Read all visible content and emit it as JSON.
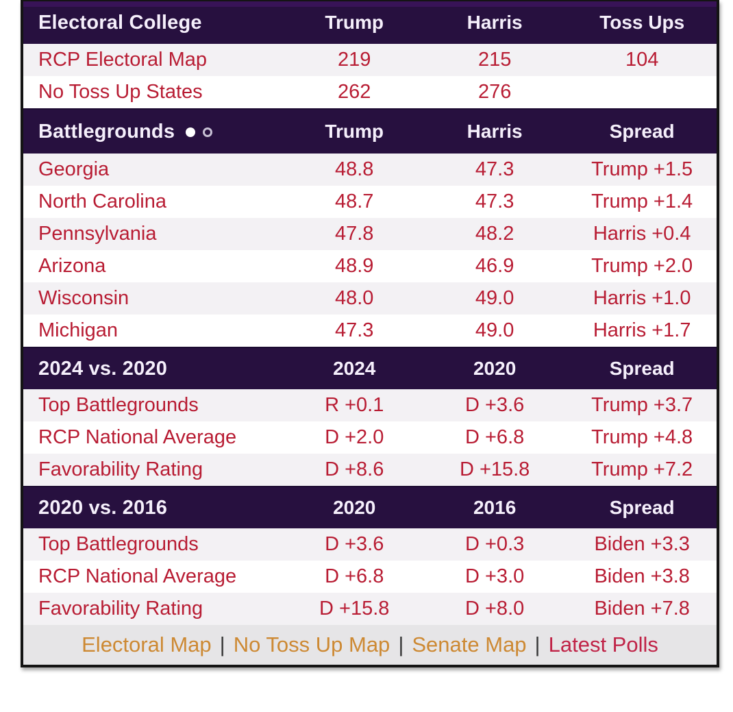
{
  "widget_name": "RCP Election Widget",
  "colors": {
    "header_bg": "#27103f",
    "header_bg_highlight": "#381357",
    "header_text": "#f5effb",
    "row_text_red": "#b81c33",
    "row_alt_bg": "#f3f1f4",
    "row_bg": "#ffffff",
    "frame_border": "#141414",
    "footer_bg": "#e6e5e7",
    "footer_link_orange": "#cd8933",
    "footer_link_red": "#c02347",
    "pager_dot_active": "#ffffff",
    "pager_dot_inactive": "#c7c0d4"
  },
  "chart_data": {
    "type": "table",
    "sections": [
      {
        "title": "Electoral College",
        "columns": [
          "Trump",
          "Harris",
          "Toss Ups"
        ],
        "rows": [
          [
            "RCP Electoral Map",
            219,
            215,
            104
          ],
          [
            "No Toss Up States",
            262,
            276,
            null
          ]
        ]
      },
      {
        "title": "Battlegrounds",
        "columns": [
          "Trump",
          "Harris",
          "Spread"
        ],
        "rows": [
          [
            "Georgia",
            48.8,
            47.3,
            "Trump +1.5"
          ],
          [
            "North Carolina",
            48.7,
            47.3,
            "Trump +1.4"
          ],
          [
            "Pennsylvania",
            47.8,
            48.2,
            "Harris +0.4"
          ],
          [
            "Arizona",
            48.9,
            46.9,
            "Trump +2.0"
          ],
          [
            "Wisconsin",
            48.0,
            49.0,
            "Harris +1.0"
          ],
          [
            "Michigan",
            47.3,
            49.0,
            "Harris +1.7"
          ]
        ]
      },
      {
        "title": "2024 vs. 2020",
        "columns": [
          "2024",
          "2020",
          "Spread"
        ],
        "rows": [
          [
            "Top Battlegrounds",
            "R +0.1",
            "D +3.6",
            "Trump +3.7"
          ],
          [
            "RCP National Average",
            "D +2.0",
            "D +6.8",
            "Trump +4.8"
          ],
          [
            "Favorability Rating",
            "D +8.6",
            "D +15.8",
            "Trump +7.2"
          ]
        ]
      },
      {
        "title": "2020 vs. 2016",
        "columns": [
          "2020",
          "2016",
          "Spread"
        ],
        "rows": [
          [
            "Top Battlegrounds",
            "D +3.6",
            "D +0.3",
            "Biden +3.3"
          ],
          [
            "RCP National Average",
            "D +6.8",
            "D +3.0",
            "Biden +3.8"
          ],
          [
            "Favorability Rating",
            "D +15.8",
            "D +8.0",
            "Biden +7.8"
          ]
        ]
      }
    ]
  },
  "sections": [
    {
      "title": "Electoral College",
      "columns": [
        "Trump",
        "Harris",
        "Toss Ups"
      ],
      "rows": [
        {
          "label": "RCP Electoral Map",
          "c1": "219",
          "c2": "215",
          "c3": "104"
        },
        {
          "label": "No Toss Up States",
          "c1": "262",
          "c2": "276",
          "c3": ""
        }
      ]
    },
    {
      "title": "Battlegrounds",
      "pager": {
        "dots_total": 2,
        "active_dot": 1
      },
      "columns": [
        "Trump",
        "Harris",
        "Spread"
      ],
      "rows": [
        {
          "label": "Georgia",
          "c1": "48.8",
          "c2": "47.3",
          "c3": "Trump +1.5"
        },
        {
          "label": "North Carolina",
          "c1": "48.7",
          "c2": "47.3",
          "c3": "Trump +1.4"
        },
        {
          "label": "Pennsylvania",
          "c1": "47.8",
          "c2": "48.2",
          "c3": "Harris +0.4"
        },
        {
          "label": "Arizona",
          "c1": "48.9",
          "c2": "46.9",
          "c3": "Trump +2.0"
        },
        {
          "label": "Wisconsin",
          "c1": "48.0",
          "c2": "49.0",
          "c3": "Harris +1.0"
        },
        {
          "label": "Michigan",
          "c1": "47.3",
          "c2": "49.0",
          "c3": "Harris +1.7"
        }
      ]
    },
    {
      "title": "2024 vs. 2020",
      "columns": [
        "2024",
        "2020",
        "Spread"
      ],
      "rows": [
        {
          "label": "Top Battlegrounds",
          "c1": "R +0.1",
          "c2": "D +3.6",
          "c3": "Trump +3.7"
        },
        {
          "label": "RCP National Average",
          "c1": "D +2.0",
          "c2": "D +6.8",
          "c3": "Trump +4.8"
        },
        {
          "label": "Favorability Rating",
          "c1": "D +8.6",
          "c2": "D +15.8",
          "c3": "Trump +7.2"
        }
      ]
    },
    {
      "title": "2020 vs. 2016",
      "columns": [
        "2020",
        "2016",
        "Spread"
      ],
      "rows": [
        {
          "label": "Top Battlegrounds",
          "c1": "D +3.6",
          "c2": "D +0.3",
          "c3": "Biden +3.3"
        },
        {
          "label": "RCP National Average",
          "c1": "D +6.8",
          "c2": "D +3.0",
          "c3": "Biden +3.8"
        },
        {
          "label": "Favorability Rating",
          "c1": "D +15.8",
          "c2": "D +8.0",
          "c3": "Biden +7.8"
        }
      ]
    }
  ],
  "footer": {
    "separator": "|",
    "links": [
      {
        "label": "Electoral Map"
      },
      {
        "label": "No Toss Up Map"
      },
      {
        "label": "Senate Map"
      },
      {
        "label": "Latest Polls"
      }
    ]
  }
}
